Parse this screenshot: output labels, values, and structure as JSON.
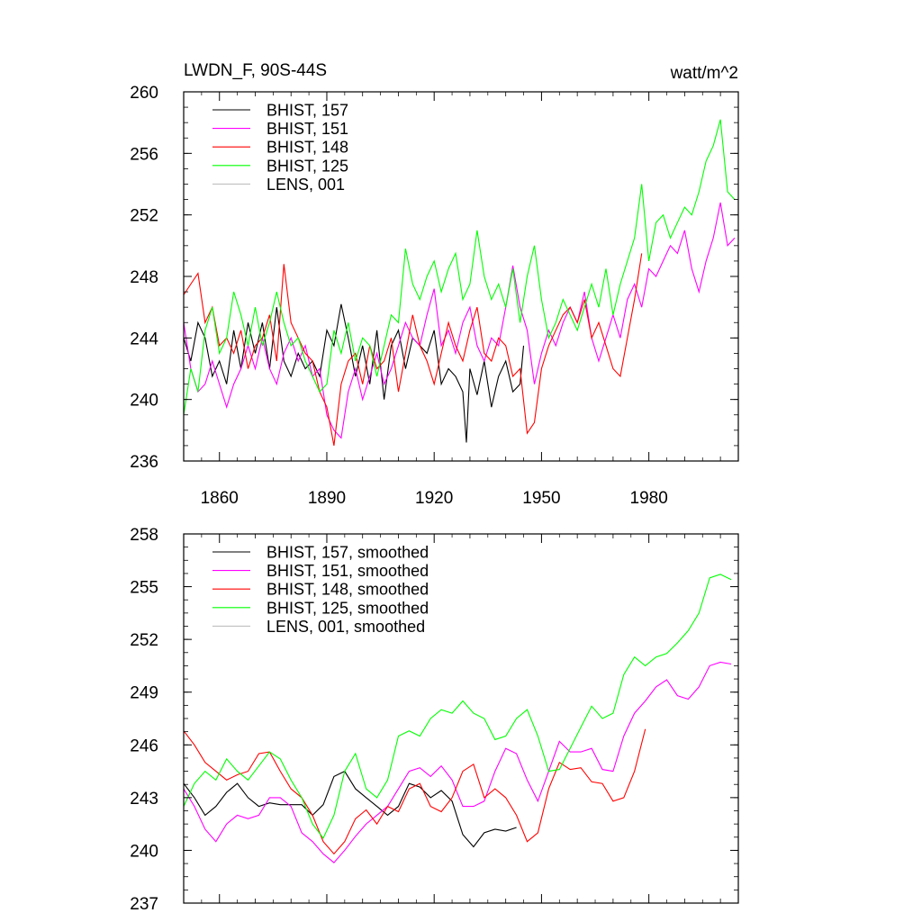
{
  "chart_data": [
    {
      "type": "line",
      "title": "LWDN_F, 90S-44S",
      "units": "watt/m^2",
      "xlim": [
        1850,
        2005
      ],
      "ylim": [
        236,
        260
      ],
      "yticks": [
        236,
        240,
        244,
        248,
        252,
        256,
        260
      ],
      "xtick_labels": [
        "1860",
        "1890",
        "1920",
        "1950",
        "1980"
      ],
      "xtick_values": [
        1860,
        1890,
        1920,
        1950,
        1980
      ],
      "legend": "top-left",
      "series": [
        {
          "name": "BHIST, 157",
          "color": "#000000",
          "x": [
            1850,
            1852,
            1854,
            1856,
            1858,
            1860,
            1862,
            1864,
            1866,
            1868,
            1870,
            1872,
            1874,
            1876,
            1878,
            1880,
            1882,
            1884,
            1886,
            1888,
            1890,
            1892,
            1894,
            1896,
            1898,
            1900,
            1902,
            1904,
            1906,
            1908,
            1910,
            1912,
            1914,
            1916,
            1918,
            1920,
            1922,
            1924,
            1926,
            1928,
            1929,
            1930,
            1932,
            1934,
            1936,
            1938,
            1940,
            1942,
            1944,
            1945
          ],
          "y": [
            244.0,
            242.5,
            245.0,
            244.0,
            241.5,
            242.5,
            241.0,
            244.5,
            242.0,
            245.0,
            243.0,
            245.0,
            242.0,
            246.0,
            242.5,
            241.5,
            243.0,
            242.0,
            242.5,
            241.5,
            244.5,
            243.5,
            246.2,
            244.0,
            241.5,
            243.5,
            241.0,
            244.5,
            240.0,
            243.5,
            244.5,
            242.0,
            244.0,
            243.5,
            243.0,
            244.5,
            241.0,
            242.0,
            241.5,
            240.5,
            237.2,
            242.0,
            240.3,
            242.5,
            239.5,
            241.5,
            242.5,
            240.5,
            241.0,
            243.5
          ]
        },
        {
          "name": "BHIST, 151",
          "color": "#ff00ff",
          "x": [
            1850,
            1852,
            1854,
            1856,
            1858,
            1860,
            1862,
            1864,
            1866,
            1868,
            1870,
            1872,
            1874,
            1876,
            1878,
            1880,
            1882,
            1884,
            1886,
            1888,
            1890,
            1892,
            1894,
            1896,
            1898,
            1900,
            1902,
            1904,
            1906,
            1908,
            1910,
            1912,
            1914,
            1916,
            1918,
            1920,
            1922,
            1924,
            1926,
            1928,
            1930,
            1932,
            1934,
            1936,
            1938,
            1940,
            1942,
            1944,
            1946,
            1948,
            1950,
            1952,
            1954,
            1956,
            1958,
            1960,
            1962,
            1964,
            1966,
            1968,
            1970,
            1972,
            1974,
            1976,
            1978,
            1980,
            1982,
            1984,
            1986,
            1988,
            1990,
            1992,
            1994,
            1996,
            1998,
            2000,
            2002,
            2004
          ],
          "y": [
            245.0,
            242.0,
            240.5,
            241.0,
            242.5,
            241.0,
            239.5,
            241.0,
            242.0,
            243.5,
            242.0,
            244.0,
            242.0,
            241.0,
            243.0,
            244.0,
            242.5,
            243.5,
            241.5,
            242.0,
            239.0,
            238.0,
            237.5,
            240.5,
            242.0,
            240.0,
            241.5,
            243.0,
            241.0,
            242.0,
            243.5,
            245.0,
            244.0,
            243.5,
            245.5,
            247.2,
            243.5,
            244.5,
            243.0,
            245.0,
            246.0,
            243.5,
            242.5,
            244.0,
            243.5,
            246.0,
            248.7,
            246.0,
            244.5,
            241.0,
            243.0,
            244.5,
            243.5,
            245.0,
            246.0,
            245.0,
            247.0,
            244.0,
            242.5,
            244.0,
            245.5,
            244.0,
            246.5,
            247.5,
            246.0,
            248.5,
            248.0,
            249.0,
            250.0,
            249.5,
            251.0,
            248.5,
            247.0,
            249.0,
            250.5,
            252.8,
            250.0,
            250.5
          ]
        },
        {
          "name": "BHIST, 148",
          "color": "#ff0000",
          "x": [
            1850,
            1852,
            1854,
            1856,
            1858,
            1860,
            1862,
            1864,
            1866,
            1868,
            1870,
            1872,
            1874,
            1876,
            1878,
            1880,
            1882,
            1884,
            1886,
            1888,
            1890,
            1892,
            1894,
            1896,
            1898,
            1900,
            1902,
            1904,
            1906,
            1908,
            1910,
            1912,
            1914,
            1916,
            1918,
            1920,
            1922,
            1924,
            1926,
            1928,
            1930,
            1932,
            1934,
            1936,
            1938,
            1940,
            1942,
            1944,
            1946,
            1948,
            1950,
            1952,
            1954,
            1956,
            1958,
            1960,
            1962,
            1964,
            1966,
            1968,
            1970,
            1972,
            1974,
            1976,
            1978
          ],
          "y": [
            246.8,
            247.5,
            248.2,
            245.0,
            246.0,
            243.5,
            244.0,
            243.0,
            244.5,
            242.0,
            243.5,
            244.0,
            245.5,
            242.5,
            248.8,
            245.0,
            244.0,
            243.0,
            242.5,
            240.5,
            239.5,
            237.0,
            241.0,
            242.5,
            243.0,
            241.0,
            243.5,
            242.0,
            242.5,
            244.0,
            240.5,
            243.0,
            245.5,
            243.5,
            242.5,
            241.0,
            243.0,
            245.0,
            243.5,
            242.5,
            244.5,
            246.0,
            243.0,
            242.5,
            244.0,
            243.5,
            241.5,
            242.0,
            237.8,
            238.5,
            242.0,
            243.5,
            244.5,
            245.5,
            246.0,
            245.0,
            246.5,
            244.0,
            245.0,
            243.5,
            242.0,
            241.5,
            244.0,
            246.5,
            249.5
          ]
        },
        {
          "name": "BHIST, 125",
          "color": "#00ff00",
          "x": [
            1850,
            1852,
            1854,
            1856,
            1858,
            1860,
            1862,
            1864,
            1866,
            1868,
            1870,
            1872,
            1874,
            1876,
            1878,
            1880,
            1882,
            1884,
            1886,
            1888,
            1890,
            1892,
            1894,
            1896,
            1898,
            1900,
            1902,
            1904,
            1906,
            1908,
            1910,
            1912,
            1914,
            1916,
            1918,
            1920,
            1922,
            1924,
            1926,
            1928,
            1930,
            1932,
            1934,
            1936,
            1938,
            1940,
            1942,
            1944,
            1946,
            1948,
            1950,
            1952,
            1954,
            1956,
            1958,
            1960,
            1962,
            1964,
            1966,
            1968,
            1970,
            1972,
            1974,
            1976,
            1978,
            1980,
            1982,
            1984,
            1986,
            1988,
            1990,
            1992,
            1994,
            1996,
            1998,
            2000,
            2002,
            2004
          ],
          "y": [
            239.0,
            242.0,
            240.5,
            244.5,
            246.0,
            243.0,
            244.0,
            247.0,
            245.5,
            243.5,
            246.0,
            243.5,
            245.0,
            247.0,
            245.0,
            243.5,
            244.0,
            242.5,
            241.5,
            240.5,
            241.0,
            244.5,
            243.0,
            245.0,
            242.5,
            244.0,
            243.5,
            241.5,
            243.5,
            245.5,
            245.0,
            249.8,
            247.5,
            246.5,
            248.0,
            249.0,
            247.0,
            248.5,
            249.5,
            246.5,
            247.5,
            251.0,
            248.0,
            246.5,
            247.5,
            246.0,
            248.5,
            245.0,
            248.0,
            250.0,
            246.5,
            244.0,
            245.0,
            246.5,
            245.5,
            244.5,
            246.0,
            247.5,
            246.0,
            248.5,
            245.5,
            247.5,
            249.0,
            250.5,
            254.0,
            249.0,
            251.5,
            252.0,
            250.5,
            251.5,
            252.5,
            252.0,
            253.5,
            255.5,
            256.5,
            258.2,
            253.5,
            253.0
          ]
        },
        {
          "name": "LENS, 001",
          "color": "#c0c0c0",
          "x": [],
          "y": []
        }
      ]
    },
    {
      "type": "line",
      "title": "",
      "xlim": [
        1850,
        2005
      ],
      "ylim": [
        237,
        258
      ],
      "yticks": [
        237,
        240,
        243,
        246,
        249,
        252,
        255,
        258
      ],
      "legend": "top-left",
      "series": [
        {
          "name": "BHIST, 157, smoothed",
          "color": "#000000",
          "x": [
            1850,
            1853,
            1856,
            1859,
            1862,
            1865,
            1868,
            1871,
            1874,
            1877,
            1880,
            1883,
            1886,
            1889,
            1892,
            1895,
            1898,
            1901,
            1904,
            1907,
            1910,
            1913,
            1916,
            1919,
            1922,
            1925,
            1928,
            1931,
            1934,
            1937,
            1940,
            1943
          ],
          "y": [
            243.8,
            243.0,
            242.0,
            242.5,
            243.3,
            243.8,
            243.0,
            242.5,
            242.7,
            242.6,
            242.6,
            242.6,
            242.0,
            242.6,
            244.2,
            244.5,
            243.5,
            243.0,
            242.5,
            242.0,
            242.5,
            243.8,
            243.6,
            243.0,
            243.4,
            242.8,
            240.9,
            240.2,
            241.0,
            241.2,
            241.1,
            241.3
          ]
        },
        {
          "name": "BHIST, 151, smoothed",
          "color": "#ff00ff",
          "x": [
            1850,
            1853,
            1856,
            1859,
            1862,
            1865,
            1868,
            1871,
            1874,
            1877,
            1880,
            1883,
            1886,
            1889,
            1892,
            1895,
            1898,
            1901,
            1904,
            1907,
            1910,
            1913,
            1916,
            1919,
            1922,
            1925,
            1928,
            1931,
            1934,
            1937,
            1940,
            1943,
            1946,
            1949,
            1952,
            1955,
            1958,
            1961,
            1964,
            1967,
            1970,
            1973,
            1976,
            1979,
            1982,
            1985,
            1988,
            1991,
            1994,
            1997,
            2000,
            2003
          ],
          "y": [
            243.5,
            242.5,
            241.2,
            240.5,
            241.5,
            242.0,
            241.8,
            242.0,
            243.0,
            243.0,
            242.5,
            241.0,
            240.5,
            239.8,
            239.3,
            240.0,
            240.8,
            241.5,
            242.0,
            242.5,
            243.5,
            244.5,
            244.7,
            244.2,
            244.8,
            244.0,
            242.5,
            242.5,
            242.8,
            244.5,
            245.8,
            245.5,
            244.0,
            242.8,
            244.5,
            246.2,
            245.6,
            245.6,
            245.8,
            244.6,
            244.5,
            246.5,
            247.8,
            248.5,
            249.3,
            249.7,
            248.8,
            248.6,
            249.3,
            250.5,
            250.7,
            250.6
          ]
        },
        {
          "name": "BHIST, 148, smoothed",
          "color": "#ff0000",
          "x": [
            1850,
            1853,
            1856,
            1859,
            1862,
            1865,
            1868,
            1871,
            1874,
            1877,
            1880,
            1883,
            1886,
            1889,
            1892,
            1895,
            1898,
            1901,
            1904,
            1907,
            1910,
            1913,
            1916,
            1919,
            1922,
            1925,
            1928,
            1931,
            1934,
            1937,
            1940,
            1943,
            1946,
            1949,
            1952,
            1955,
            1958,
            1961,
            1964,
            1967,
            1970,
            1973,
            1976,
            1979
          ],
          "y": [
            246.8,
            246.0,
            245.0,
            244.5,
            244.0,
            244.3,
            244.5,
            245.5,
            245.6,
            244.5,
            243.5,
            243.0,
            242.0,
            240.5,
            239.8,
            240.5,
            241.8,
            242.3,
            241.5,
            242.5,
            242.2,
            243.5,
            243.8,
            242.5,
            242.2,
            243.0,
            244.5,
            244.9,
            243.0,
            243.5,
            243.0,
            242.0,
            240.5,
            241.0,
            243.5,
            245.0,
            244.6,
            244.7,
            243.9,
            243.8,
            242.8,
            243.0,
            244.5,
            246.9
          ]
        },
        {
          "name": "BHIST, 125, smoothed",
          "color": "#00ff00",
          "x": [
            1850,
            1853,
            1856,
            1859,
            1862,
            1865,
            1868,
            1871,
            1874,
            1877,
            1880,
            1883,
            1886,
            1889,
            1892,
            1895,
            1898,
            1901,
            1904,
            1907,
            1910,
            1913,
            1916,
            1919,
            1922,
            1925,
            1928,
            1931,
            1934,
            1937,
            1940,
            1943,
            1946,
            1949,
            1952,
            1955,
            1958,
            1961,
            1964,
            1967,
            1970,
            1973,
            1976,
            1979,
            1982,
            1985,
            1988,
            1991,
            1994,
            1997,
            2000,
            2003
          ],
          "y": [
            242.5,
            243.8,
            244.5,
            244.0,
            245.2,
            244.5,
            244.0,
            244.8,
            245.6,
            245.2,
            244.0,
            243.0,
            241.5,
            240.7,
            242.0,
            244.5,
            245.5,
            243.5,
            243.0,
            244.0,
            246.5,
            246.8,
            246.5,
            247.5,
            248.0,
            247.8,
            248.5,
            247.8,
            247.5,
            246.3,
            246.5,
            247.5,
            248.0,
            246.5,
            244.5,
            244.6,
            245.8,
            247.0,
            248.2,
            247.5,
            247.8,
            250.0,
            251.0,
            250.5,
            251.0,
            251.2,
            251.8,
            252.5,
            253.5,
            255.5,
            255.7,
            255.4
          ]
        },
        {
          "name": "LENS, 001, smoothed",
          "color": "#c0c0c0",
          "x": [],
          "y": []
        }
      ]
    }
  ]
}
